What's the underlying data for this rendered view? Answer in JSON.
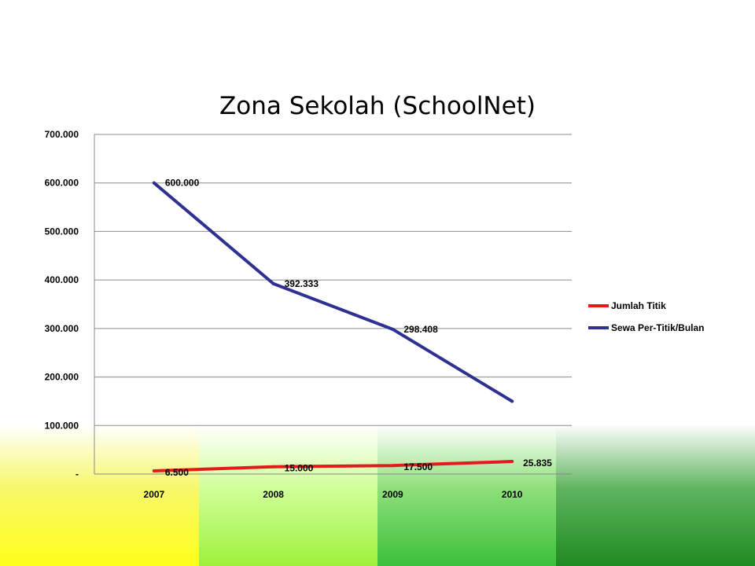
{
  "chart_data": {
    "type": "line",
    "title": "Zona Sekolah (SchoolNet)",
    "xlabel": "",
    "ylabel": "",
    "categories": [
      "2007",
      "2008",
      "2009",
      "2010"
    ],
    "ylim": [
      0,
      700000
    ],
    "yticks": [
      0,
      100000,
      200000,
      300000,
      400000,
      500000,
      600000,
      700000
    ],
    "ytick_labels": [
      "-",
      "100.000",
      "200.000",
      "300.000",
      "400.000",
      "500.000",
      "600.000",
      "700.000"
    ],
    "grid": true,
    "legend_position": "right",
    "series": [
      {
        "name": "Jumlah Titik",
        "color": "#e41a1c",
        "values": [
          6500,
          15000,
          17500,
          25835
        ],
        "labels": [
          "6.500",
          "15.000",
          "17.500",
          "25.835"
        ]
      },
      {
        "name": "Sewa Per-Titik/Bulan",
        "color": "#2e3192",
        "values": [
          600000,
          392333,
          298408,
          150000
        ],
        "labels": [
          "600.000",
          "392.333",
          "298.408",
          ""
        ]
      }
    ]
  }
}
